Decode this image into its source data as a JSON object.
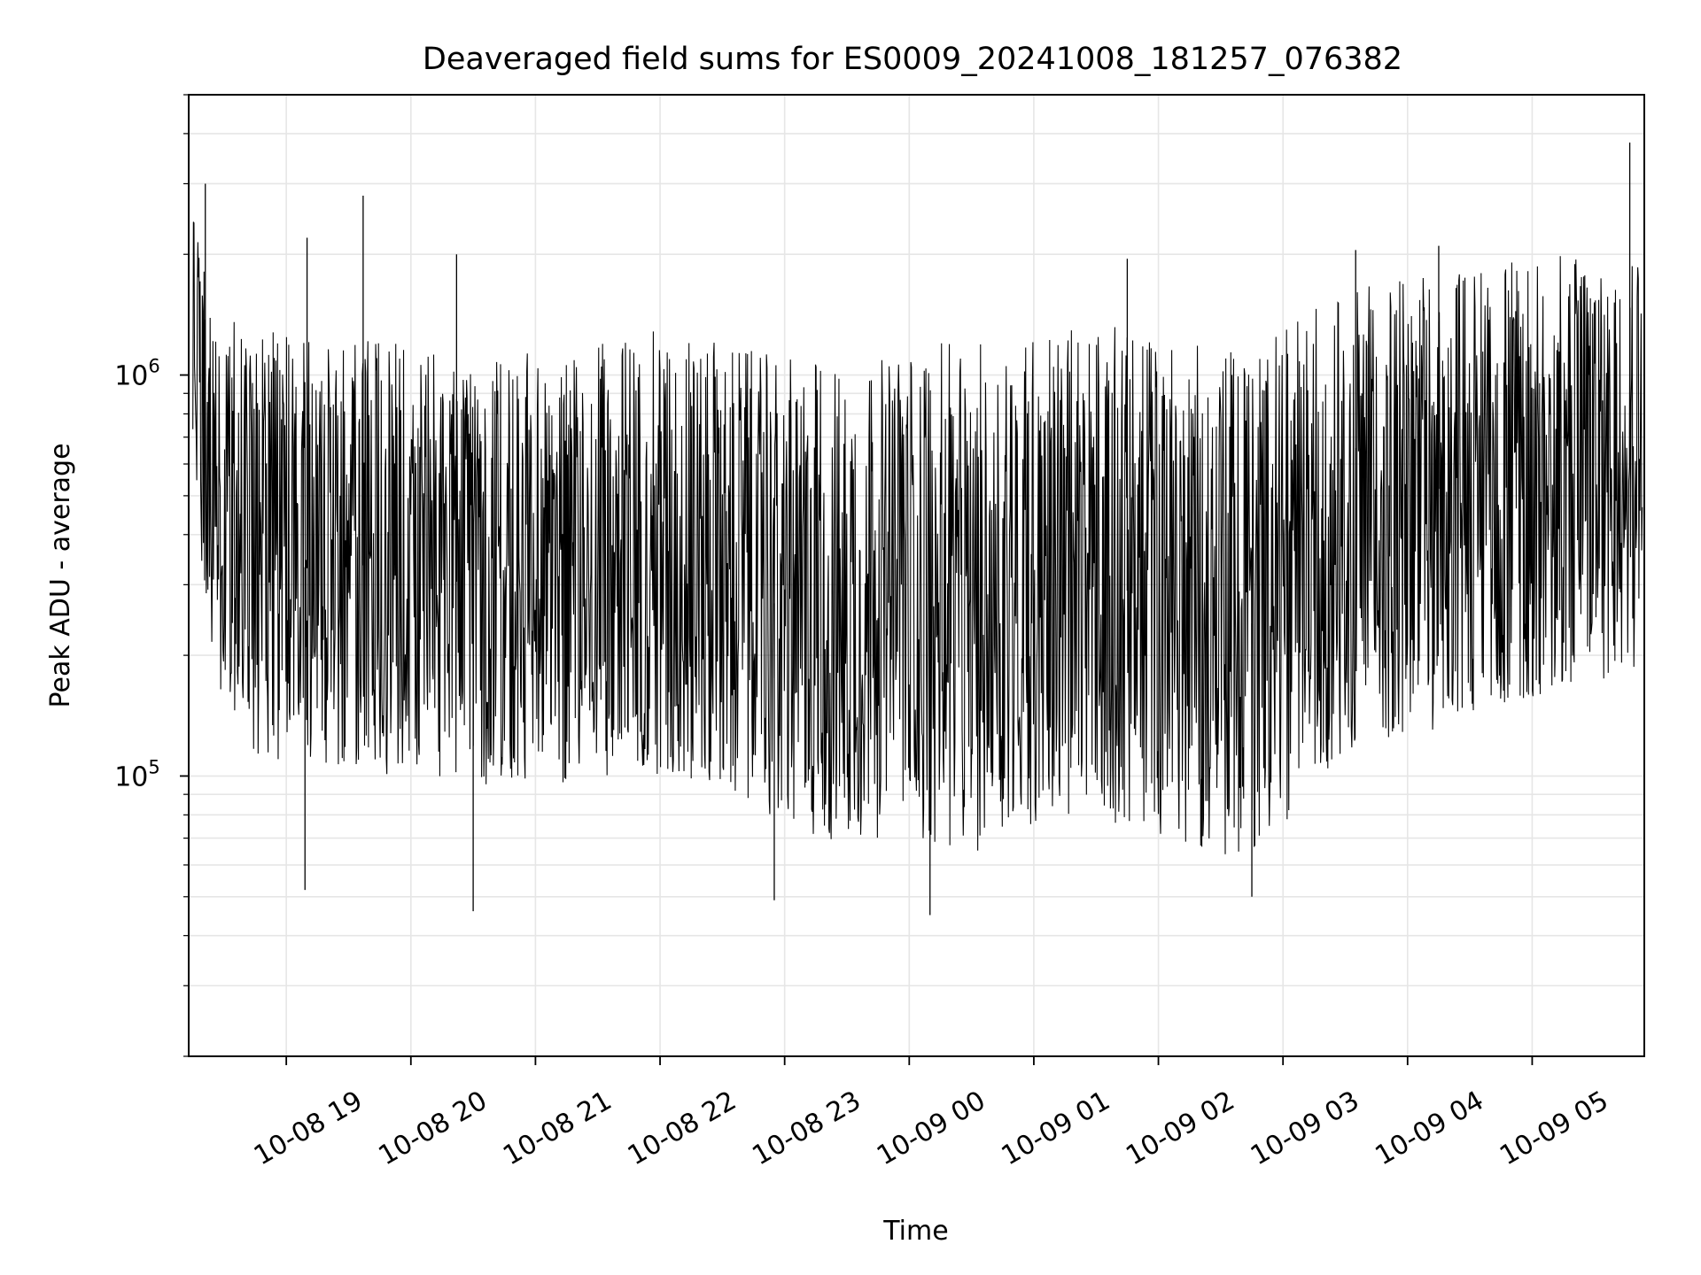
{
  "chart_data": {
    "type": "line",
    "title": "Deaveraged field sums for ES0009_20241008_181257_076382",
    "xlabel": "Time",
    "ylabel": "Peak ADU - average",
    "x_axis": {
      "type": "time",
      "range": [
        "2024-10-08 18:13",
        "2024-10-09 05:54"
      ],
      "ticks": [
        "2024-10-08 19:00",
        "2024-10-08 20:00",
        "2024-10-08 21:00",
        "2024-10-08 22:00",
        "2024-10-08 23:00",
        "2024-10-09 00:00",
        "2024-10-09 01:00",
        "2024-10-09 02:00",
        "2024-10-09 03:00",
        "2024-10-09 04:00",
        "2024-10-09 05:00"
      ],
      "tick_labels": [
        "10-08 19",
        "10-08 20",
        "10-08 21",
        "10-08 22",
        "10-08 23",
        "10-09 00",
        "10-09 01",
        "10-09 02",
        "10-09 03",
        "10-09 04",
        "10-09 05"
      ]
    },
    "y_axis": {
      "scale": "log",
      "range": [
        20000,
        5000000
      ],
      "major_ticks": [
        100000,
        1000000
      ],
      "major_tick_labels": [
        {
          "base": "10",
          "exp": "5"
        },
        {
          "base": "10",
          "exp": "6"
        }
      ]
    },
    "grid": true,
    "line_color": "#000000",
    "grid_color": "#e6e6e6",
    "series": [
      {
        "x": [
          "2024-10-08 18:15",
          "2024-10-08 18:20",
          "2024-10-08 18:30",
          "2024-10-08 18:45",
          "2024-10-08 19:00",
          "2024-10-08 19:15",
          "2024-10-08 19:30",
          "2024-10-08 19:45",
          "2024-10-08 20:00",
          "2024-10-08 20:15",
          "2024-10-08 20:30",
          "2024-10-08 20:45",
          "2024-10-08 21:00",
          "2024-10-08 21:15",
          "2024-10-08 21:30",
          "2024-10-08 21:45",
          "2024-10-08 22:00",
          "2024-10-08 22:15",
          "2024-10-08 22:30",
          "2024-10-08 22:45",
          "2024-10-08 23:00",
          "2024-10-08 23:15",
          "2024-10-08 23:30",
          "2024-10-08 23:45",
          "2024-10-09 00:00",
          "2024-10-09 00:15",
          "2024-10-09 00:30",
          "2024-10-09 00:45",
          "2024-10-09 01:00",
          "2024-10-09 01:15",
          "2024-10-09 01:30",
          "2024-10-09 01:45",
          "2024-10-09 02:00",
          "2024-10-09 02:15",
          "2024-10-09 02:30",
          "2024-10-09 02:45",
          "2024-10-09 03:00",
          "2024-10-09 03:15",
          "2024-10-09 03:30",
          "2024-10-09 03:45",
          "2024-10-09 04:00",
          "2024-10-09 04:15",
          "2024-10-09 04:30",
          "2024-10-09 04:45",
          "2024-10-09 05:00",
          "2024-10-09 05:15",
          "2024-10-09 05:30",
          "2024-10-09 05:45",
          "2024-10-09 05:53"
        ],
        "y": [
          1500000,
          1000000,
          400000,
          350000,
          350000,
          320000,
          340000,
          330000,
          330000,
          310000,
          300000,
          300000,
          310000,
          300000,
          320000,
          330000,
          340000,
          330000,
          310000,
          290000,
          260000,
          250000,
          240000,
          250000,
          260000,
          240000,
          230000,
          280000,
          300000,
          290000,
          300000,
          290000,
          280000,
          260000,
          250000,
          240000,
          300000,
          380000,
          420000,
          450000,
          480000,
          520000,
          560000,
          600000,
          620000,
          640000,
          650000,
          700000,
          750000
        ],
        "band_low": [
          700000,
          300000,
          130000,
          110000,
          110000,
          100000,
          105000,
          100000,
          100000,
          95000,
          95000,
          95000,
          100000,
          95000,
          100000,
          100000,
          100000,
          95000,
          90000,
          85000,
          75000,
          70000,
          65000,
          70000,
          70000,
          65000,
          62000,
          70000,
          75000,
          75000,
          78000,
          75000,
          72000,
          68000,
          62000,
          60000,
          75000,
          100000,
          110000,
          120000,
          125000,
          130000,
          140000,
          150000,
          155000,
          160000,
          170000,
          180000,
          190000
        ],
        "band_high": [
          2500000,
          1900000,
          1400000,
          1300000,
          1300000,
          1200000,
          1250000,
          1200000,
          1200000,
          1150000,
          1100000,
          1100000,
          1150000,
          1100000,
          1200000,
          1250000,
          1300000,
          1250000,
          1200000,
          1150000,
          1100000,
          1100000,
          1050000,
          1100000,
          1150000,
          1200000,
          1200000,
          1250000,
          1300000,
          1300000,
          1350000,
          1300000,
          1250000,
          1200000,
          1150000,
          1150000,
          1300000,
          1500000,
          1600000,
          1700000,
          1750000,
          1800000,
          1850000,
          1900000,
          1950000,
          2000000,
          2000000,
          2100000,
          2200000
        ],
        "spikes": [
          {
            "x": "2024-10-08 18:21",
            "y": 3000000
          },
          {
            "x": "2024-10-08 19:10",
            "y": 2200000
          },
          {
            "x": "2024-10-08 19:37",
            "y": 2800000
          },
          {
            "x": "2024-10-08 20:22",
            "y": 2000000
          },
          {
            "x": "2024-10-08 19:09",
            "y": 52000
          },
          {
            "x": "2024-10-08 20:30",
            "y": 46000
          },
          {
            "x": "2024-10-08 22:55",
            "y": 49000
          },
          {
            "x": "2024-10-09 00:10",
            "y": 45000
          },
          {
            "x": "2024-10-09 01:45",
            "y": 1950000
          },
          {
            "x": "2024-10-09 02:45",
            "y": 50000
          },
          {
            "x": "2024-10-09 03:35",
            "y": 2050000
          },
          {
            "x": "2024-10-09 04:15",
            "y": 2100000
          },
          {
            "x": "2024-10-09 05:47",
            "y": 3800000
          }
        ]
      }
    ]
  }
}
